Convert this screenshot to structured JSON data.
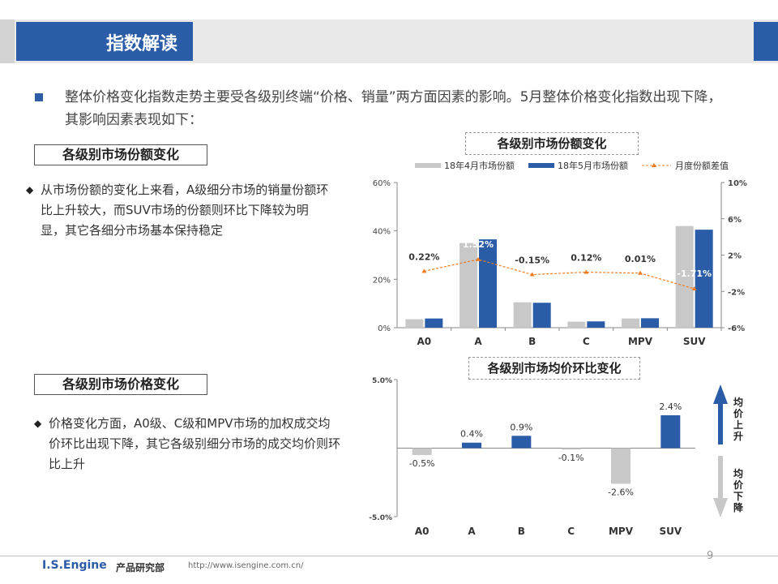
{
  "header": {
    "title": "指数解读"
  },
  "intro": {
    "text": "整体价格变化指数走势主要受各级别终端“价格、销量”两方面因素的影响。5月整体价格变化指数出现下降，其影响因素表现如下："
  },
  "section_share": {
    "label": "各级别市场份额变化",
    "desc": "从市场份额的变化上来看，A级细分市场的销量份额环比上升较大，而SUV市场的份额则环比下降较为明显，其它各细分市场基本保持稳定"
  },
  "section_price": {
    "label": "各级别市场价格变化",
    "desc": "价格变化方面，A0级、C级和MPV市场的加权成交均价环比出现下降，其它各级别细分市场的成交均价则环比上升"
  },
  "colors": {
    "accent": "#2a5ca8",
    "gray_bar": "#c8c8c8",
    "line": "#f07c22"
  },
  "chart_data": [
    {
      "type": "bar",
      "title": "各级别市场份额变化",
      "categories": [
        "A0",
        "A",
        "B",
        "C",
        "MPV",
        "SUV"
      ],
      "series": [
        {
          "name": "18年4月市场份额",
          "type": "bar",
          "axis": "left",
          "values": [
            3.5,
            35,
            10.5,
            2.5,
            3.8,
            42
          ]
        },
        {
          "name": "18年5月市场份额",
          "type": "bar",
          "axis": "left",
          "values": [
            3.8,
            36.5,
            10.3,
            2.6,
            3.9,
            40.5
          ]
        },
        {
          "name": "月度份额差值",
          "type": "line",
          "axis": "right",
          "values": [
            0.22,
            1.52,
            -0.15,
            0.12,
            0.01,
            -1.71
          ],
          "labels": [
            "0.22%",
            "1.52%",
            "-0.15%",
            "0.12%",
            "0.01%",
            "-1.71%"
          ]
        }
      ],
      "left_axis": {
        "range": [
          0,
          60
        ],
        "ticks": [
          "0%",
          "20%",
          "40%",
          "60%"
        ]
      },
      "right_axis": {
        "range": [
          -6,
          10
        ],
        "ticks": [
          "-6%",
          "-2%",
          "2%",
          "6%",
          "10%"
        ]
      },
      "legend": "top"
    },
    {
      "type": "bar",
      "title": "各级别市场均价环比变化",
      "categories": [
        "A0",
        "A",
        "B",
        "C",
        "MPV",
        "SUV"
      ],
      "values": [
        -0.5,
        0.4,
        0.9,
        -0.1,
        -2.6,
        2.4
      ],
      "labels": [
        "-0.5%",
        "0.4%",
        "0.9%",
        "-0.1%",
        "-2.6%",
        "2.4%"
      ],
      "ylim": [
        -5,
        5
      ],
      "ticks": [
        "5.0%",
        "-5.0%"
      ],
      "up_label": "均价上升",
      "down_label": "均价下降"
    }
  ],
  "footer": {
    "brand": "I.S.Engine",
    "dept": "产品研究部",
    "url": "http://www.isengine.com.cn/",
    "page": "9"
  }
}
